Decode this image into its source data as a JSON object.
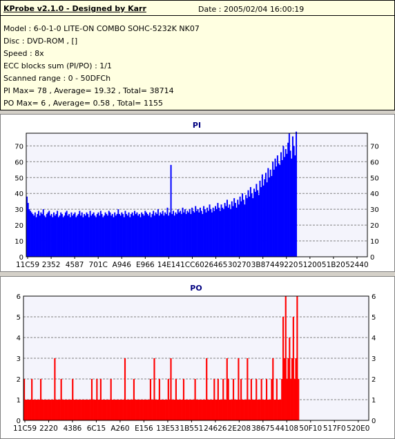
{
  "info": {
    "title": "KProbe v2.1.0 - Designed by Karr",
    "date": "Date : 2005/02/04 16:00:19",
    "lines": [
      "Model : 6-0-1-0 LITE-ON COMBO SOHC-5232K NK07",
      "Disc : DVD-ROM ,  []",
      "Speed : 8x",
      "ECC blocks sum (PI/PO) : 1/1",
      "Scanned range : 0 - 50DFCh",
      "PI Max= 78 , Average= 19.32 , Total= 38714",
      "PO Max= 6 , Average= 0.58 , Total= 1155"
    ]
  },
  "chart_data": [
    {
      "type": "bar",
      "title": "PI",
      "xlabel": "",
      "ylabel": "",
      "ylim": [
        0,
        78
      ],
      "yticks": [
        0,
        10,
        20,
        30,
        40,
        50,
        60,
        70
      ],
      "x_tick_labels": [
        "11C59",
        "2352",
        "4587",
        "701C",
        "A946",
        "E966",
        "14E14",
        "1CC60",
        "26465",
        "30270",
        "3B874",
        "49220",
        "51200",
        "51B20",
        "52440"
      ],
      "grid": true,
      "series_color": "#0000ff",
      "data_extent_fraction": 0.793,
      "values": [
        38,
        34,
        30,
        29,
        28,
        27,
        26,
        28,
        25,
        27,
        29,
        26,
        28,
        27,
        30,
        26,
        25,
        27,
        28,
        29,
        26,
        27,
        25,
        28,
        26,
        27,
        29,
        25,
        26,
        28,
        27,
        25,
        26,
        28,
        29,
        26,
        27,
        25,
        28,
        26,
        27,
        28,
        25,
        26,
        27,
        29,
        26,
        28,
        25,
        27,
        26,
        28,
        27,
        25,
        29,
        26,
        27,
        28,
        26,
        25,
        27,
        28,
        26,
        29,
        27,
        25,
        26,
        28,
        27,
        26,
        29,
        28,
        26,
        27,
        25,
        28,
        26,
        27,
        30,
        27,
        26,
        28,
        27,
        25,
        29,
        27,
        26,
        28,
        25,
        27,
        28,
        26,
        29,
        27,
        28,
        26,
        27,
        25,
        28,
        27,
        26,
        29,
        28,
        27,
        26,
        28,
        25,
        27,
        29,
        26,
        28,
        27,
        30,
        26,
        28,
        27,
        29,
        26,
        28,
        27,
        31,
        26,
        28,
        58,
        27,
        29,
        26,
        28,
        27,
        30,
        28,
        29,
        27,
        31,
        28,
        30,
        27,
        29,
        28,
        30,
        27,
        31,
        29,
        28,
        32,
        29,
        30,
        28,
        31,
        29,
        27,
        32,
        30,
        28,
        31,
        29,
        33,
        30,
        28,
        31,
        29,
        32,
        30,
        34,
        31,
        29,
        33,
        31,
        30,
        34,
        32,
        36,
        31,
        33,
        30,
        35,
        32,
        37,
        34,
        31,
        36,
        33,
        38,
        35,
        40,
        36,
        33,
        39,
        37,
        42,
        38,
        44,
        40,
        37,
        43,
        41,
        46,
        42,
        39,
        48,
        44,
        52,
        45,
        49,
        53,
        47,
        56,
        50,
        55,
        51,
        60,
        55,
        62,
        57,
        64,
        59,
        58,
        66,
        61,
        70,
        63,
        68,
        65,
        72,
        78,
        67,
        62,
        76,
        70,
        64,
        79
      ]
    },
    {
      "type": "bar",
      "title": "PO",
      "xlabel": "",
      "ylabel": "",
      "ylim": [
        0,
        6
      ],
      "yticks": [
        0,
        1,
        2,
        3,
        4,
        5,
        6
      ],
      "x_tick_labels": [
        "11C59",
        "2220",
        "4386",
        "6C15",
        "A260",
        "E156",
        "13E53",
        "1B551",
        "24626",
        "2E208",
        "38675",
        "44108",
        "50F10",
        "517F0",
        "520E0"
      ],
      "grid": true,
      "series_color": "#ff0000",
      "data_extent_fraction": 0.798,
      "values": [
        2,
        1,
        1,
        1,
        1,
        1,
        2,
        1,
        1,
        1,
        1,
        1,
        1,
        2,
        1,
        1,
        1,
        1,
        1,
        1,
        1,
        1,
        1,
        1,
        3,
        1,
        1,
        1,
        1,
        2,
        1,
        1,
        1,
        1,
        1,
        1,
        1,
        1,
        2,
        1,
        1,
        1,
        1,
        1,
        1,
        1,
        1,
        1,
        1,
        1,
        1,
        1,
        1,
        2,
        1,
        1,
        1,
        2,
        1,
        1,
        2,
        1,
        1,
        1,
        1,
        1,
        1,
        1,
        2,
        1,
        1,
        1,
        1,
        1,
        1,
        1,
        1,
        1,
        1,
        3,
        1,
        1,
        1,
        1,
        1,
        1,
        2,
        1,
        1,
        1,
        1,
        1,
        1,
        1,
        1,
        1,
        1,
        1,
        1,
        2,
        1,
        1,
        3,
        1,
        1,
        1,
        2,
        1,
        1,
        1,
        1,
        1,
        1,
        2,
        1,
        3,
        1,
        1,
        1,
        2,
        1,
        1,
        1,
        1,
        1,
        2,
        1,
        1,
        1,
        1,
        1,
        1,
        1,
        1,
        2,
        1,
        1,
        1,
        1,
        1,
        1,
        1,
        1,
        3,
        1,
        1,
        1,
        1,
        1,
        2,
        1,
        1,
        2,
        1,
        1,
        1,
        2,
        1,
        1,
        3,
        2,
        1,
        1,
        1,
        2,
        1,
        1,
        1,
        3,
        1,
        2,
        1,
        1,
        1,
        1,
        3,
        1,
        1,
        2,
        1,
        1,
        1,
        2,
        1,
        1,
        1,
        2,
        1,
        1,
        1,
        2,
        1,
        1,
        1,
        2,
        3,
        1,
        1,
        2,
        1,
        1,
        1,
        2,
        5,
        3,
        6,
        2,
        3,
        4,
        2,
        3,
        5,
        2,
        3,
        6,
        2
      ]
    }
  ]
}
